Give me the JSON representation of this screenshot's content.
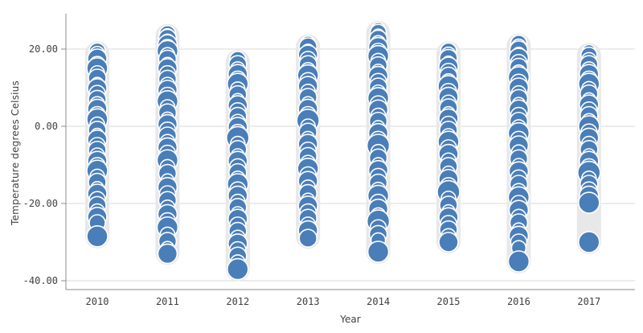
{
  "chart_data": {
    "type": "scatter",
    "title": "",
    "xlabel": "Year",
    "ylabel": "Temperature degrees Celsius",
    "x_categories": [
      "2010",
      "2011",
      "2012",
      "2013",
      "2014",
      "2015",
      "2016",
      "2017"
    ],
    "yticks": [
      {
        "value": 20,
        "label": "20.00"
      },
      {
        "value": 0,
        "label": "0.00"
      },
      {
        "value": -20,
        "label": "-20.00"
      },
      {
        "value": -40,
        "label": "-40.00"
      }
    ],
    "ylim": [
      -42.5,
      29
    ],
    "grid": "horizontal",
    "legend": "none",
    "marker": {
      "fill": "#4a7eb8",
      "stroke": "#ffffff"
    },
    "series": [
      {
        "year": "2010",
        "points": [
          [
            19.5,
            10
          ],
          [
            18.8,
            9
          ],
          [
            17.5,
            12
          ],
          [
            16,
            10
          ],
          [
            15,
            13
          ],
          [
            13.8,
            9
          ],
          [
            12.5,
            11
          ],
          [
            11,
            8
          ],
          [
            9.8,
            12
          ],
          [
            8.5,
            10
          ],
          [
            7,
            11
          ],
          [
            5.8,
            9
          ],
          [
            4.5,
            12
          ],
          [
            3,
            10
          ],
          [
            1.8,
            13
          ],
          [
            0.5,
            9
          ],
          [
            -1,
            11
          ],
          [
            -2.2,
            8
          ],
          [
            -3.5,
            12
          ],
          [
            -5,
            10
          ],
          [
            -6.2,
            11
          ],
          [
            -7.5,
            9
          ],
          [
            -9,
            12
          ],
          [
            -10.2,
            10
          ],
          [
            -11.5,
            13
          ],
          [
            -13,
            9
          ],
          [
            -14.5,
            11
          ],
          [
            -16,
            8
          ],
          [
            -17.5,
            12
          ],
          [
            -19,
            10
          ],
          [
            -20.5,
            11
          ],
          [
            -22,
            9
          ],
          [
            -23.5,
            12
          ],
          [
            -25,
            10
          ],
          [
            -28.5,
            13
          ]
        ]
      },
      {
        "year": "2011",
        "points": [
          [
            24,
            10
          ],
          [
            23.4,
            9
          ],
          [
            22.8,
            11
          ],
          [
            22,
            9
          ],
          [
            21.2,
            12
          ],
          [
            20.4,
            10
          ],
          [
            19.5,
            13
          ],
          [
            18.5,
            9
          ],
          [
            17.4,
            11
          ],
          [
            16.2,
            8
          ],
          [
            15,
            12
          ],
          [
            13.6,
            10
          ],
          [
            12.2,
            11
          ],
          [
            10.8,
            9
          ],
          [
            9.4,
            12
          ],
          [
            8,
            10
          ],
          [
            6.5,
            13
          ],
          [
            5,
            9
          ],
          [
            3.5,
            11
          ],
          [
            2,
            8
          ],
          [
            0.5,
            12
          ],
          [
            -1,
            10
          ],
          [
            -2.5,
            11
          ],
          [
            -4,
            9
          ],
          [
            -5.5,
            12
          ],
          [
            -7,
            10
          ],
          [
            -8.8,
            13
          ],
          [
            -10.5,
            9
          ],
          [
            -12.2,
            11
          ],
          [
            -14,
            8
          ],
          [
            -15.8,
            12
          ],
          [
            -17.5,
            10
          ],
          [
            -19.2,
            11
          ],
          [
            -21,
            9
          ],
          [
            -22.8,
            12
          ],
          [
            -24.5,
            10
          ],
          [
            -26.2,
            13
          ],
          [
            -28,
            9
          ],
          [
            -29.8,
            11
          ],
          [
            -31.5,
            8
          ],
          [
            -33,
            12
          ]
        ]
      },
      {
        "year": "2012",
        "points": [
          [
            17.3,
            10
          ],
          [
            16,
            11
          ],
          [
            14.8,
            9
          ],
          [
            13.5,
            12
          ],
          [
            12.2,
            10
          ],
          [
            11,
            13
          ],
          [
            9.6,
            9
          ],
          [
            8.2,
            11
          ],
          [
            6.8,
            8
          ],
          [
            5.4,
            12
          ],
          [
            4,
            10
          ],
          [
            2.6,
            11
          ],
          [
            1.2,
            9
          ],
          [
            -0.2,
            12
          ],
          [
            -1.6,
            10
          ],
          [
            -3,
            14
          ],
          [
            -4.5,
            9
          ],
          [
            -6,
            11
          ],
          [
            -7.5,
            8
          ],
          [
            -9,
            12
          ],
          [
            -10.5,
            10
          ],
          [
            -12,
            11
          ],
          [
            -13.5,
            9
          ],
          [
            -15,
            13
          ],
          [
            -16.5,
            10
          ],
          [
            -18,
            12
          ],
          [
            -19.5,
            9
          ],
          [
            -21,
            11
          ],
          [
            -22.5,
            8
          ],
          [
            -24,
            12
          ],
          [
            -25.6,
            10
          ],
          [
            -27.2,
            11
          ],
          [
            -28.8,
            9
          ],
          [
            -30.4,
            12
          ],
          [
            -32,
            10
          ],
          [
            -33.6,
            11
          ],
          [
            -35.2,
            9
          ],
          [
            -37,
            13
          ]
        ]
      },
      {
        "year": "2013",
        "points": [
          [
            21.5,
            9
          ],
          [
            20.6,
            11
          ],
          [
            19.6,
            8
          ],
          [
            18.5,
            12
          ],
          [
            17.3,
            10
          ],
          [
            16,
            11
          ],
          [
            14.6,
            9
          ],
          [
            13.2,
            13
          ],
          [
            11.8,
            10
          ],
          [
            10.4,
            12
          ],
          [
            9,
            9
          ],
          [
            7.5,
            11
          ],
          [
            6,
            8
          ],
          [
            4.5,
            12
          ],
          [
            3,
            10
          ],
          [
            1.5,
            14
          ],
          [
            0,
            9
          ],
          [
            -1.5,
            11
          ],
          [
            -3,
            8
          ],
          [
            -4.6,
            12
          ],
          [
            -6.2,
            10
          ],
          [
            -7.8,
            11
          ],
          [
            -9.4,
            9
          ],
          [
            -11,
            13
          ],
          [
            -12.6,
            10
          ],
          [
            -14.2,
            12
          ],
          [
            -15.8,
            9
          ],
          [
            -17.4,
            11
          ],
          [
            -19,
            8
          ],
          [
            -20.6,
            12
          ],
          [
            -22.2,
            10
          ],
          [
            -23.8,
            11
          ],
          [
            -25.4,
            9
          ],
          [
            -27,
            12
          ],
          [
            -29,
            11
          ]
        ]
      },
      {
        "year": "2014",
        "points": [
          [
            25,
            9
          ],
          [
            24.3,
            10
          ],
          [
            23.5,
            8
          ],
          [
            22.6,
            11
          ],
          [
            21.6,
            9
          ],
          [
            20.5,
            12
          ],
          [
            19.4,
            10
          ],
          [
            18.2,
            13
          ],
          [
            17,
            9
          ],
          [
            15.7,
            11
          ],
          [
            14.4,
            8
          ],
          [
            13,
            12
          ],
          [
            11.6,
            10
          ],
          [
            10.2,
            11
          ],
          [
            8.8,
            9
          ],
          [
            7.3,
            13
          ],
          [
            5.8,
            10
          ],
          [
            4.3,
            12
          ],
          [
            2.8,
            9
          ],
          [
            1.3,
            11
          ],
          [
            -0.2,
            8
          ],
          [
            -1.8,
            12
          ],
          [
            -3.4,
            10
          ],
          [
            -5,
            14
          ],
          [
            -6.6,
            9
          ],
          [
            -8.2,
            11
          ],
          [
            -9.8,
            8
          ],
          [
            -11.4,
            12
          ],
          [
            -13,
            10
          ],
          [
            -14.7,
            11
          ],
          [
            -16.4,
            9
          ],
          [
            -18,
            13
          ],
          [
            -19.7,
            10
          ],
          [
            -21.4,
            12
          ],
          [
            -23,
            9
          ],
          [
            -24.6,
            14
          ],
          [
            -26.3,
            10
          ],
          [
            -28,
            11
          ],
          [
            -29.5,
            9
          ],
          [
            -32.5,
            13
          ]
        ]
      },
      {
        "year": "2015",
        "points": [
          [
            19.5,
            10
          ],
          [
            18.6,
            9
          ],
          [
            17.6,
            11
          ],
          [
            16.5,
            8
          ],
          [
            15.4,
            12
          ],
          [
            14.2,
            10
          ],
          [
            13,
            11
          ],
          [
            11.7,
            9
          ],
          [
            10.4,
            13
          ],
          [
            9,
            10
          ],
          [
            7.6,
            12
          ],
          [
            6.2,
            9
          ],
          [
            4.8,
            11
          ],
          [
            3.4,
            8
          ],
          [
            2,
            12
          ],
          [
            0.5,
            10
          ],
          [
            -1,
            11
          ],
          [
            -2.5,
            9
          ],
          [
            -4,
            13
          ],
          [
            -5.6,
            10
          ],
          [
            -7.2,
            12
          ],
          [
            -8.8,
            9
          ],
          [
            -10.4,
            11
          ],
          [
            -12,
            8
          ],
          [
            -13.7,
            12
          ],
          [
            -15.4,
            10
          ],
          [
            -17,
            14
          ],
          [
            -18.7,
            9
          ],
          [
            -20.4,
            11
          ],
          [
            -22,
            8
          ],
          [
            -23.6,
            12
          ],
          [
            -25.2,
            10
          ],
          [
            -26.8,
            11
          ],
          [
            -28.4,
            9
          ],
          [
            -30,
            12
          ]
        ]
      },
      {
        "year": "2016",
        "points": [
          [
            21.5,
            10
          ],
          [
            20.7,
            9
          ],
          [
            19.8,
            11
          ],
          [
            18.8,
            8
          ],
          [
            17.7,
            12
          ],
          [
            16.5,
            10
          ],
          [
            15.3,
            11
          ],
          [
            14,
            9
          ],
          [
            12.7,
            13
          ],
          [
            11.4,
            10
          ],
          [
            10,
            12
          ],
          [
            8.6,
            9
          ],
          [
            7.2,
            11
          ],
          [
            5.8,
            8
          ],
          [
            4.3,
            12
          ],
          [
            2.8,
            10
          ],
          [
            1.3,
            11
          ],
          [
            -0.2,
            9
          ],
          [
            -1.8,
            13
          ],
          [
            -3.4,
            10
          ],
          [
            -5,
            12
          ],
          [
            -6.7,
            9
          ],
          [
            -8.4,
            11
          ],
          [
            -10,
            8
          ],
          [
            -11.7,
            12
          ],
          [
            -13.4,
            10
          ],
          [
            -15,
            11
          ],
          [
            -16.7,
            9
          ],
          [
            -18.4,
            13
          ],
          [
            -20,
            10
          ],
          [
            -21.7,
            12
          ],
          [
            -23.4,
            9
          ],
          [
            -25,
            11
          ],
          [
            -26.7,
            8
          ],
          [
            -28.4,
            12
          ],
          [
            -30,
            10
          ],
          [
            -31.5,
            9
          ],
          [
            -35,
            13
          ]
        ]
      },
      {
        "year": "2017",
        "points": [
          [
            19.5,
            8
          ],
          [
            18.4,
            10
          ],
          [
            17.2,
            9
          ],
          [
            16,
            11
          ],
          [
            14.8,
            9
          ],
          [
            13.5,
            12
          ],
          [
            12.2,
            10
          ],
          [
            11,
            13
          ],
          [
            9.7,
            9
          ],
          [
            8.4,
            11
          ],
          [
            7,
            8
          ],
          [
            5.6,
            12
          ],
          [
            4.2,
            10
          ],
          [
            2.8,
            11
          ],
          [
            1.4,
            9
          ],
          [
            0,
            13
          ],
          [
            -1.5,
            10
          ],
          [
            -3,
            12
          ],
          [
            -4.5,
            9
          ],
          [
            -6,
            11
          ],
          [
            -7.5,
            8
          ],
          [
            -9,
            12
          ],
          [
            -10.5,
            10
          ],
          [
            -12,
            14
          ],
          [
            -13.5,
            9
          ],
          [
            -15,
            11
          ],
          [
            -16.5,
            10
          ],
          [
            -18,
            12
          ],
          [
            -19.8,
            13
          ],
          [
            -30,
            13
          ]
        ]
      }
    ]
  },
  "colors": {
    "bubble_fill": "#4a7eb8",
    "bubble_stroke": "#ffffff",
    "column_band": "#e8e8e8",
    "gridline": "#d9d9d9",
    "axis_line": "#8c8c8c",
    "tick_text": "#404040"
  }
}
